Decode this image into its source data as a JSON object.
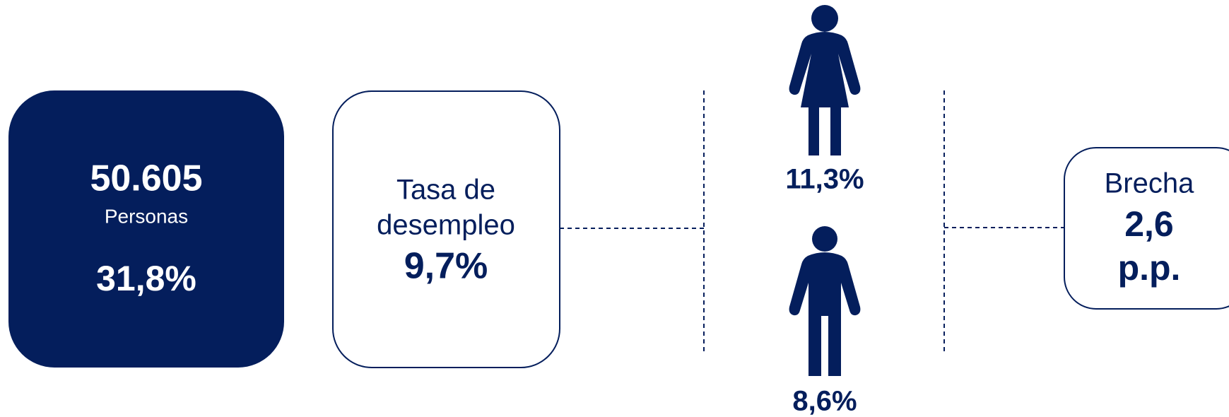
{
  "total": {
    "value": "50.605",
    "unit": "Personas",
    "share": "31,8%"
  },
  "rate": {
    "label_line1": "Tasa de",
    "label_line2": "desempleo",
    "value": "9,7%"
  },
  "women": {
    "value": "11,3%"
  },
  "men": {
    "value": "8,6%"
  },
  "gap": {
    "label": "Brecha",
    "value": "2,6",
    "unit": "p.p."
  }
}
